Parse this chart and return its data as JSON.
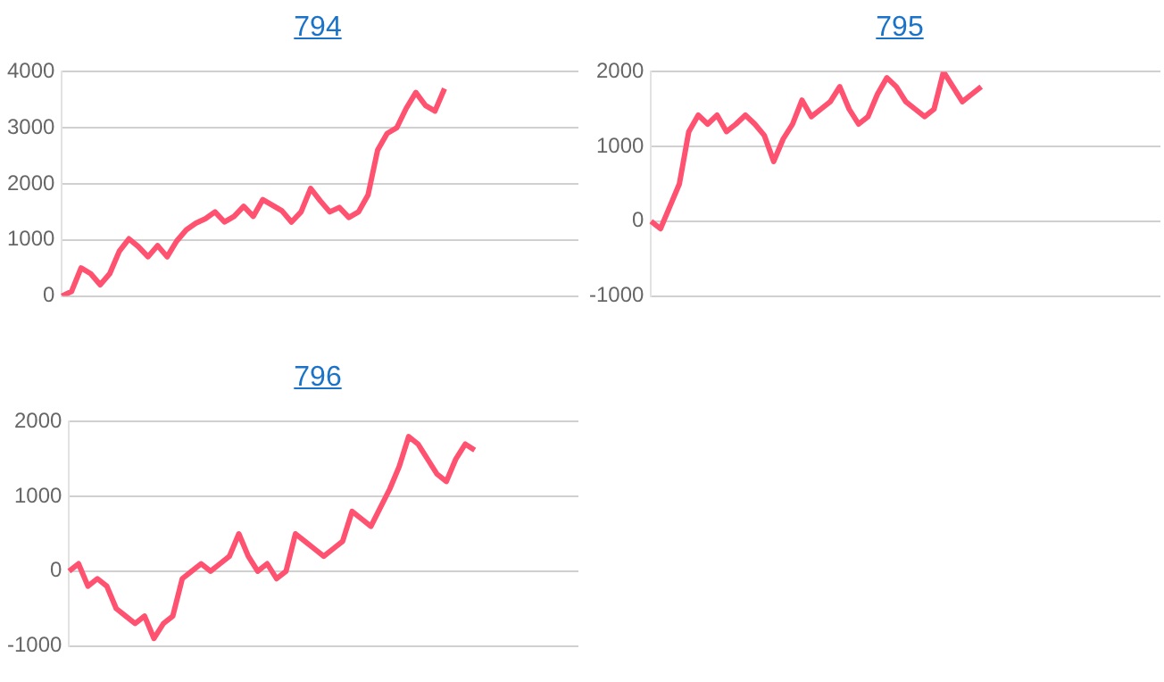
{
  "chart_data": [
    {
      "type": "line",
      "title": "794",
      "categories": [
        null,
        null,
        null,
        null,
        null,
        null,
        null,
        null,
        null,
        null,
        null,
        null,
        null,
        null,
        null,
        null,
        null,
        null,
        null,
        null,
        null,
        null,
        null,
        null,
        null,
        null,
        null,
        null,
        null,
        null,
        null,
        null,
        null,
        null,
        null,
        null,
        null,
        null,
        null,
        null,
        null,
        null,
        null,
        null,
        null,
        null,
        null,
        null,
        null,
        null,
        null,
        null,
        null,
        null,
        null
      ],
      "values": [
        0,
        80,
        500,
        400,
        200,
        400,
        800,
        1020,
        880,
        700,
        900,
        700,
        980,
        1180,
        1300,
        1380,
        1500,
        1320,
        1420,
        1600,
        1420,
        1720,
        1620,
        1520,
        1320,
        1500,
        1920,
        1700,
        1500,
        1580,
        1400,
        1500,
        1800,
        2600,
        2900,
        3000,
        3350,
        3630,
        3400,
        3300,
        3700,
        null,
        null,
        null,
        null,
        null,
        null,
        null,
        null,
        null,
        null,
        null,
        null,
        null,
        null
      ],
      "color": "#ff5170",
      "ylim": [
        0,
        4000
      ],
      "yticks": [
        0,
        1000,
        2000,
        3000,
        4000
      ],
      "grid": "y",
      "tick_labels": "y",
      "marker": "none"
    },
    {
      "type": "line",
      "title": "795",
      "categories": [
        null,
        null,
        null,
        null,
        null,
        null,
        null,
        null,
        null,
        null,
        null,
        null,
        null,
        null,
        null,
        null,
        null,
        null,
        null,
        null,
        null,
        null,
        null,
        null,
        null,
        null,
        null,
        null,
        null,
        null,
        null,
        null,
        null,
        null,
        null,
        null,
        null,
        null,
        null,
        null,
        null,
        null,
        null,
        null,
        null,
        null,
        null,
        null,
        null,
        null,
        null,
        null,
        null,
        null,
        null
      ],
      "values": [
        0,
        -100,
        200,
        500,
        1200,
        1420,
        1300,
        1420,
        1200,
        1300,
        1420,
        1300,
        1150,
        800,
        1100,
        1300,
        1620,
        1400,
        1500,
        1600,
        1800,
        1500,
        1300,
        1400,
        1700,
        1920,
        1800,
        1600,
        1500,
        1400,
        1500,
        2000,
        1800,
        1600,
        1700,
        1800,
        null,
        null,
        null,
        null,
        null,
        null,
        null,
        null,
        null,
        null,
        null,
        null,
        null,
        null,
        null,
        null,
        null,
        null,
        null
      ],
      "color": "#ff5170",
      "ylim": [
        -1000,
        2000
      ],
      "yticks": [
        -1000,
        0,
        1000,
        2000
      ],
      "grid": "y",
      "tick_labels": "y",
      "marker": "none"
    },
    {
      "type": "line",
      "title": "796",
      "categories": [
        null,
        null,
        null,
        null,
        null,
        null,
        null,
        null,
        null,
        null,
        null,
        null,
        null,
        null,
        null,
        null,
        null,
        null,
        null,
        null,
        null,
        null,
        null,
        null,
        null,
        null,
        null,
        null,
        null,
        null,
        null,
        null,
        null,
        null,
        null,
        null,
        null,
        null,
        null,
        null,
        null,
        null,
        null,
        null,
        null,
        null,
        null,
        null,
        null,
        null,
        null,
        null,
        null,
        null,
        null
      ],
      "values": [
        0,
        100,
        -200,
        -100,
        -200,
        -500,
        -600,
        -700,
        -600,
        -900,
        -700,
        -600,
        -100,
        0,
        100,
        0,
        100,
        200,
        500,
        200,
        0,
        100,
        -100,
        0,
        500,
        400,
        300,
        200,
        300,
        400,
        800,
        700,
        600,
        850,
        1100,
        1400,
        1800,
        1700,
        1500,
        1300,
        1200,
        1500,
        1700,
        1620,
        null,
        null,
        null,
        null,
        null,
        null,
        null,
        null,
        null,
        null,
        null
      ],
      "color": "#ff5170",
      "ylim": [
        -1000,
        2000
      ],
      "yticks": [
        -1000,
        0,
        1000,
        2000
      ],
      "grid": "y",
      "tick_labels": "y",
      "marker": "none"
    }
  ]
}
